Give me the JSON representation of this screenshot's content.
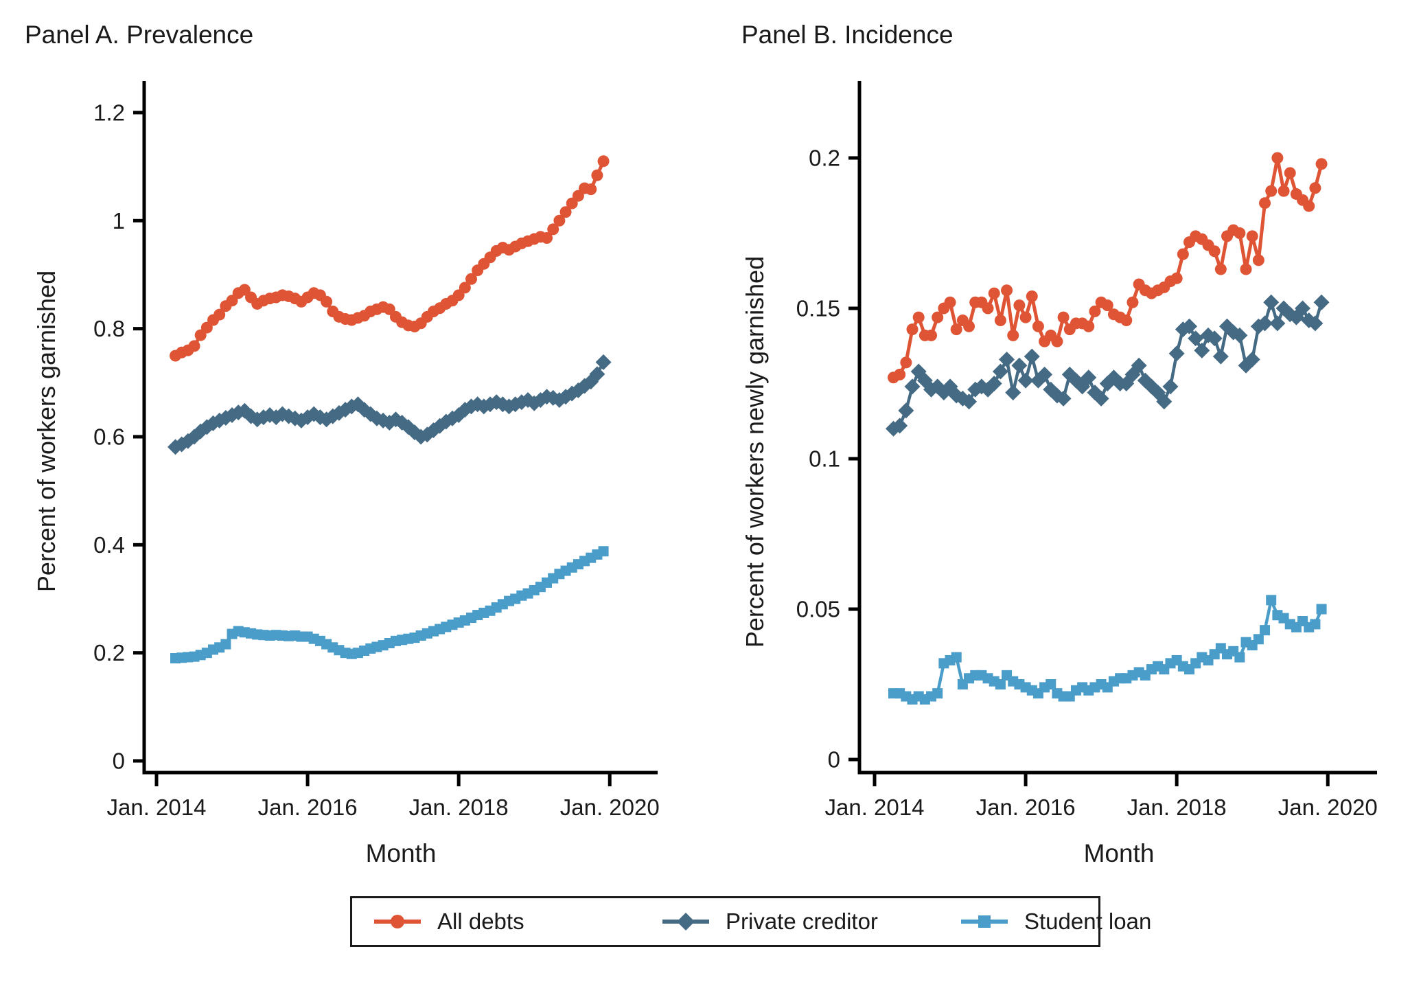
{
  "legend": {
    "entries": [
      {
        "label": "All debts",
        "marker": "circle",
        "color": "#de5434"
      },
      {
        "label": "Private creditor",
        "marker": "diamond",
        "color": "#456a84"
      },
      {
        "label": "Student loan",
        "marker": "square",
        "color": "#4a9cc9"
      }
    ],
    "position": "bottom-center",
    "border_color": "#1a1a1a"
  },
  "chart_data": [
    {
      "type": "line",
      "panel": "A",
      "title": "Panel A. Prevalence",
      "ylabel": "Percent of workers garnished",
      "xlabel": "Month",
      "ylim": [
        0,
        1.26
      ],
      "grid": false,
      "y_ticks": [
        0,
        0.2,
        0.4,
        0.6,
        0.8,
        1,
        1.2
      ],
      "y_tick_labels": [
        "0",
        "0.2",
        "0.4",
        "0.6",
        "0.8",
        "1",
        "1.2"
      ],
      "x_tick_labels": [
        "Jan. 2014",
        "Jan. 2016",
        "Jan. 2018",
        "Jan. 2020"
      ],
      "x_tick_month_offsets_from_jan2014": [
        0,
        24,
        48,
        72
      ],
      "x": {
        "start_month": "April 2014",
        "end_month": "December 2019",
        "frequency": "monthly",
        "n_points": 69
      },
      "series": [
        {
          "name": "All debts",
          "marker": "circle",
          "color": "#de5434",
          "values": [
            0.75,
            0.756,
            0.76,
            0.768,
            0.788,
            0.802,
            0.816,
            0.826,
            0.842,
            0.852,
            0.866,
            0.872,
            0.858,
            0.846,
            0.852,
            0.856,
            0.858,
            0.862,
            0.86,
            0.856,
            0.85,
            0.858,
            0.866,
            0.862,
            0.85,
            0.832,
            0.822,
            0.818,
            0.816,
            0.82,
            0.824,
            0.832,
            0.836,
            0.84,
            0.836,
            0.822,
            0.812,
            0.806,
            0.804,
            0.81,
            0.822,
            0.832,
            0.838,
            0.846,
            0.852,
            0.862,
            0.876,
            0.892,
            0.908,
            0.92,
            0.932,
            0.944,
            0.95,
            0.946,
            0.952,
            0.958,
            0.962,
            0.966,
            0.97,
            0.968,
            0.984,
            1.0,
            1.016,
            1.032,
            1.046,
            1.06,
            1.058,
            1.084,
            1.11
          ]
        },
        {
          "name": "Private creditor",
          "marker": "diamond",
          "color": "#456a84",
          "values": [
            0.581,
            0.586,
            0.592,
            0.6,
            0.61,
            0.618,
            0.625,
            0.63,
            0.635,
            0.64,
            0.645,
            0.648,
            0.638,
            0.632,
            0.636,
            0.64,
            0.636,
            0.642,
            0.638,
            0.634,
            0.63,
            0.636,
            0.642,
            0.636,
            0.632,
            0.638,
            0.644,
            0.65,
            0.656,
            0.66,
            0.65,
            0.642,
            0.634,
            0.63,
            0.626,
            0.632,
            0.626,
            0.618,
            0.608,
            0.6,
            0.604,
            0.612,
            0.62,
            0.628,
            0.634,
            0.64,
            0.65,
            0.656,
            0.66,
            0.656,
            0.66,
            0.664,
            0.66,
            0.656,
            0.66,
            0.664,
            0.668,
            0.662,
            0.668,
            0.674,
            0.672,
            0.668,
            0.674,
            0.68,
            0.686,
            0.694,
            0.702,
            0.716,
            0.738
          ]
        },
        {
          "name": "Student loan",
          "marker": "square",
          "color": "#4a9cc9",
          "values": [
            0.19,
            0.191,
            0.192,
            0.193,
            0.196,
            0.2,
            0.206,
            0.21,
            0.216,
            0.235,
            0.24,
            0.238,
            0.236,
            0.234,
            0.233,
            0.232,
            0.233,
            0.232,
            0.231,
            0.232,
            0.23,
            0.23,
            0.226,
            0.222,
            0.216,
            0.21,
            0.205,
            0.2,
            0.198,
            0.2,
            0.204,
            0.208,
            0.211,
            0.214,
            0.218,
            0.222,
            0.224,
            0.226,
            0.228,
            0.232,
            0.236,
            0.24,
            0.244,
            0.248,
            0.252,
            0.256,
            0.26,
            0.265,
            0.27,
            0.274,
            0.278,
            0.284,
            0.29,
            0.296,
            0.3,
            0.306,
            0.31,
            0.316,
            0.322,
            0.33,
            0.338,
            0.346,
            0.352,
            0.358,
            0.364,
            0.37,
            0.376,
            0.382,
            0.388
          ]
        }
      ]
    },
    {
      "type": "line",
      "panel": "B",
      "title": "Panel B. Incidence",
      "ylabel": "Percent of workers newly garnished",
      "xlabel": "Month",
      "ylim": [
        0,
        0.225
      ],
      "grid": false,
      "y_ticks": [
        0,
        0.05,
        0.1,
        0.15,
        0.2
      ],
      "y_tick_labels": [
        "0",
        "0.05",
        "0.1",
        "0.15",
        "0.2"
      ],
      "x_tick_labels": [
        "Jan. 2014",
        "Jan. 2016",
        "Jan. 2018",
        "Jan. 2020"
      ],
      "x_tick_month_offsets_from_jan2014": [
        0,
        24,
        48,
        72
      ],
      "x": {
        "start_month": "April 2014",
        "end_month": "December 2019",
        "frequency": "monthly",
        "n_points": 69
      },
      "series": [
        {
          "name": "All debts",
          "marker": "circle",
          "color": "#de5434",
          "values": [
            0.127,
            0.128,
            0.132,
            0.143,
            0.147,
            0.141,
            0.141,
            0.147,
            0.15,
            0.152,
            0.143,
            0.146,
            0.144,
            0.152,
            0.152,
            0.15,
            0.155,
            0.146,
            0.156,
            0.141,
            0.151,
            0.147,
            0.154,
            0.144,
            0.139,
            0.141,
            0.139,
            0.147,
            0.143,
            0.145,
            0.145,
            0.144,
            0.149,
            0.152,
            0.151,
            0.148,
            0.147,
            0.146,
            0.152,
            0.158,
            0.156,
            0.155,
            0.156,
            0.157,
            0.159,
            0.16,
            0.168,
            0.172,
            0.174,
            0.173,
            0.171,
            0.169,
            0.163,
            0.174,
            0.176,
            0.175,
            0.163,
            0.174,
            0.166,
            0.185,
            0.189,
            0.2,
            0.189,
            0.195,
            0.188,
            0.186,
            0.184,
            0.19,
            0.198
          ]
        },
        {
          "name": "Private creditor",
          "marker": "diamond",
          "color": "#456a84",
          "values": [
            0.11,
            0.111,
            0.116,
            0.124,
            0.129,
            0.126,
            0.123,
            0.124,
            0.122,
            0.124,
            0.121,
            0.12,
            0.119,
            0.123,
            0.124,
            0.123,
            0.125,
            0.129,
            0.133,
            0.122,
            0.131,
            0.126,
            0.134,
            0.126,
            0.128,
            0.123,
            0.121,
            0.12,
            0.128,
            0.126,
            0.124,
            0.127,
            0.122,
            0.12,
            0.125,
            0.127,
            0.125,
            0.125,
            0.128,
            0.131,
            0.126,
            0.124,
            0.122,
            0.119,
            0.124,
            0.135,
            0.143,
            0.144,
            0.14,
            0.136,
            0.141,
            0.14,
            0.134,
            0.144,
            0.142,
            0.141,
            0.131,
            0.133,
            0.144,
            0.145,
            0.152,
            0.145,
            0.15,
            0.148,
            0.147,
            0.15,
            0.146,
            0.145,
            0.152
          ]
        },
        {
          "name": "Student loan",
          "marker": "square",
          "color": "#4a9cc9",
          "values": [
            0.022,
            0.022,
            0.021,
            0.02,
            0.021,
            0.02,
            0.021,
            0.022,
            0.032,
            0.033,
            0.034,
            0.025,
            0.027,
            0.028,
            0.028,
            0.027,
            0.026,
            0.025,
            0.028,
            0.026,
            0.025,
            0.024,
            0.023,
            0.022,
            0.024,
            0.025,
            0.022,
            0.021,
            0.021,
            0.023,
            0.024,
            0.023,
            0.024,
            0.025,
            0.024,
            0.026,
            0.027,
            0.027,
            0.028,
            0.029,
            0.028,
            0.03,
            0.031,
            0.03,
            0.032,
            0.033,
            0.031,
            0.03,
            0.032,
            0.034,
            0.033,
            0.035,
            0.037,
            0.035,
            0.036,
            0.034,
            0.039,
            0.038,
            0.04,
            0.043,
            0.053,
            0.048,
            0.047,
            0.045,
            0.044,
            0.046,
            0.044,
            0.045,
            0.05
          ]
        }
      ]
    }
  ]
}
